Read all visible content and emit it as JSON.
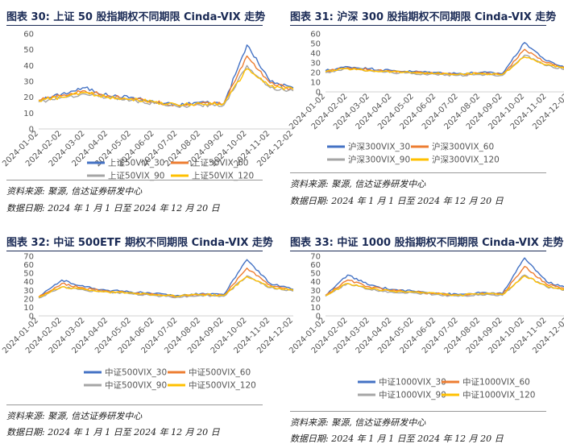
{
  "panels": [
    {
      "title": "图表 30:   上证 50 股指期权不同期限 Cinda-VIX 走势",
      "source": "资料来源:  聚源,  信达证券研发中心",
      "date_range": "数据日期:  2024 年 1 月 1 日至 2024 年 12 月 20 日"
    },
    {
      "title": "图表 31:   沪深 300 股指期权不同期限 Cinda-VIX 走势",
      "source": "资料来源:  聚源,  信达证券研发中心",
      "date_range": "数据日期:  2024 年 1 月 1 日至 2024 年 12 月 20 日"
    },
    {
      "title": "图表 32:   中证 500ETF 期权不同期限 Cinda-VIX 走势",
      "source": "资料来源:  聚源,  信达证券研发中心",
      "date_range": "数据日期:  2024 年 1 月 1 日至 2024 年 12 月 20 日"
    },
    {
      "title": "图表 33:   中证 1000 股指期权不同期限 Cinda-VIX 走势",
      "source": "资料来源:  聚源,  信达证券研发中心",
      "date_range": "数据日期:  2024 年 1 月 1 日至 2024 年 12 月 20 日"
    }
  ],
  "chart_data": [
    {
      "type": "line",
      "x": [
        "2024-01-02",
        "2024-02-02",
        "2024-03-02",
        "2024-04-02",
        "2024-05-02",
        "2024-06-02",
        "2024-07-02",
        "2024-08-02",
        "2024-09-02",
        "2024-10-02",
        "2024-11-02",
        "2024-12-02"
      ],
      "xlabel": "",
      "ylabel": "",
      "ylim": [
        0,
        60
      ],
      "yticks": [
        0,
        10,
        20,
        30,
        40,
        50,
        60
      ],
      "grid": false,
      "legend": "bottom",
      "series": [
        {
          "name": "上证50VIX_30",
          "color": "#4472C4",
          "values": [
            18,
            22,
            26,
            21,
            20,
            17,
            15,
            17,
            16,
            53,
            30,
            26
          ]
        },
        {
          "name": "上证50VIX_60",
          "color": "#ED7D31",
          "values": [
            18,
            21,
            24,
            21,
            19,
            17,
            15,
            16,
            16,
            46,
            29,
            25
          ]
        },
        {
          "name": "上证50VIX_90",
          "color": "#A5A5A5",
          "values": [
            17,
            20,
            22,
            20,
            18,
            16,
            14,
            15,
            15,
            40,
            26,
            24
          ]
        },
        {
          "name": "上证50VIX_120",
          "color": "#FFC000",
          "values": [
            18,
            20,
            23,
            20,
            19,
            17,
            15,
            16,
            16,
            38,
            27,
            25
          ]
        }
      ]
    },
    {
      "type": "line",
      "x": [
        "2024-01-02",
        "2024-02-02",
        "2024-03-02",
        "2024-04-02",
        "2024-05-02",
        "2024-06-02",
        "2024-07-02",
        "2024-08-02",
        "2024-09-02",
        "2024-10-02",
        "2024-11-02",
        "2024-12-02"
      ],
      "xlabel": "",
      "ylabel": "",
      "ylim": [
        0,
        60
      ],
      "yticks": [
        0,
        10,
        20,
        30,
        40,
        50,
        60
      ],
      "grid": false,
      "legend": "bottom",
      "series": [
        {
          "name": "沪深300VIX_30",
          "color": "#4472C4",
          "values": [
            22,
            26,
            24,
            22,
            21,
            20,
            19,
            20,
            19,
            51,
            32,
            24
          ]
        },
        {
          "name": "沪深300VIX_60",
          "color": "#ED7D31",
          "values": [
            21,
            25,
            23,
            21,
            20,
            19,
            18,
            19,
            18,
            44,
            30,
            24
          ]
        },
        {
          "name": "沪深300VIX_90",
          "color": "#A5A5A5",
          "values": [
            20,
            24,
            22,
            20,
            19,
            18,
            17,
            18,
            17,
            38,
            27,
            23
          ]
        },
        {
          "name": "沪深300VIX_120",
          "color": "#FFC000",
          "values": [
            21,
            24,
            22,
            21,
            20,
            19,
            18,
            19,
            18,
            36,
            28,
            23
          ]
        }
      ]
    },
    {
      "type": "line",
      "x": [
        "2024-01-02",
        "2024-02-02",
        "2024-03-02",
        "2024-04-02",
        "2024-05-02",
        "2024-06-02",
        "2024-07-02",
        "2024-08-02",
        "2024-09-02",
        "2024-10-02",
        "2024-11-02",
        "2024-12-02"
      ],
      "xlabel": "",
      "ylabel": "",
      "ylim": [
        0,
        70
      ],
      "yticks": [
        0,
        10,
        20,
        30,
        40,
        50,
        60,
        70
      ],
      "grid": false,
      "legend": "bottom",
      "series": [
        {
          "name": "中证500VIX_30",
          "color": "#4472C4",
          "values": [
            22,
            42,
            34,
            30,
            28,
            26,
            24,
            26,
            25,
            66,
            38,
            31
          ]
        },
        {
          "name": "中证500VIX_60",
          "color": "#ED7D31",
          "values": [
            22,
            38,
            32,
            29,
            27,
            25,
            23,
            25,
            24,
            56,
            36,
            30
          ]
        },
        {
          "name": "中证500VIX_90",
          "color": "#A5A5A5",
          "values": [
            21,
            34,
            30,
            28,
            26,
            24,
            22,
            24,
            23,
            47,
            33,
            29
          ]
        },
        {
          "name": "中证500VIX_120",
          "color": "#FFC000",
          "values": [
            22,
            34,
            31,
            28,
            27,
            25,
            23,
            25,
            24,
            46,
            34,
            30
          ]
        }
      ]
    },
    {
      "type": "line",
      "x": [
        "2024-01-02",
        "2024-02-02",
        "2024-03-02",
        "2024-04-02",
        "2024-05-02",
        "2024-06-02",
        "2024-07-02",
        "2024-08-02",
        "2024-09-02",
        "2024-10-02",
        "2024-11-02",
        "2024-12-02"
      ],
      "xlabel": "",
      "ylabel": "",
      "ylim": [
        0,
        70
      ],
      "yticks": [
        0,
        10,
        20,
        30,
        40,
        50,
        60,
        70
      ],
      "grid": false,
      "legend": "bottom",
      "series": [
        {
          "name": "中证1000VIX_30",
          "color": "#4472C4",
          "values": [
            24,
            48,
            36,
            31,
            29,
            27,
            25,
            27,
            26,
            68,
            40,
            32
          ]
        },
        {
          "name": "中证1000VIX_60",
          "color": "#ED7D31",
          "values": [
            24,
            42,
            34,
            30,
            28,
            26,
            24,
            26,
            25,
            58,
            37,
            31
          ]
        },
        {
          "name": "中证1000VIX_90",
          "color": "#A5A5A5",
          "values": [
            23,
            38,
            31,
            28,
            27,
            25,
            23,
            25,
            24,
            48,
            34,
            29
          ]
        },
        {
          "name": "中证1000VIX_120",
          "color": "#FFC000",
          "values": [
            24,
            38,
            32,
            29,
            28,
            26,
            24,
            26,
            25,
            47,
            35,
            30
          ]
        }
      ]
    }
  ]
}
